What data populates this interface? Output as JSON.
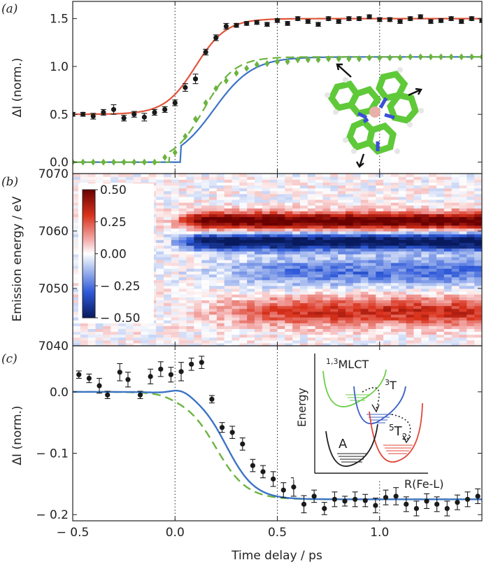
{
  "chart_data": [
    {
      "panel": "(a)",
      "type": "line",
      "ylabel": "ΔI (norm.)",
      "xlim": [
        -0.5,
        1.5
      ],
      "ylim": [
        -0.12,
        1.68
      ],
      "yticks": [
        0.0,
        0.5,
        1.0,
        1.5
      ],
      "yticklabels": [
        "0.0",
        "0.5",
        "1.0",
        "1.5"
      ],
      "vlines": [
        0.0,
        0.5,
        1.0
      ],
      "series": [
        {
          "name": "data-black",
          "style": "points-errorbars",
          "color": "#1a1a1a",
          "x": [
            -0.5,
            -0.45,
            -0.4,
            -0.35,
            -0.3,
            -0.25,
            -0.2,
            -0.15,
            -0.1,
            -0.05,
            0.0,
            0.05,
            0.1,
            0.15,
            0.2,
            0.25,
            0.3,
            0.35,
            0.4,
            0.45,
            0.5,
            0.55,
            0.6,
            0.65,
            0.7,
            0.75,
            0.8,
            0.85,
            0.9,
            0.95,
            1.0,
            1.05,
            1.1,
            1.15,
            1.2,
            1.25,
            1.3,
            1.35,
            1.4,
            1.45,
            1.5
          ],
          "y": [
            0.5,
            0.5,
            0.48,
            0.52,
            0.55,
            0.46,
            0.5,
            0.47,
            0.52,
            0.55,
            0.62,
            0.78,
            0.87,
            1.15,
            1.3,
            1.42,
            1.43,
            1.45,
            1.46,
            1.44,
            1.48,
            1.45,
            1.5,
            1.47,
            1.44,
            1.5,
            1.47,
            1.5,
            1.5,
            1.52,
            1.49,
            1.49,
            1.47,
            1.5,
            1.52,
            1.47,
            1.48,
            1.5,
            1.47,
            1.5,
            1.48
          ],
          "err": [
            0.02,
            0.02,
            0.03,
            0.03,
            0.05,
            0.03,
            0.03,
            0.04,
            0.03,
            0.03,
            0.03,
            0.04,
            0.05,
            0.03,
            0.03,
            0.03,
            0.02,
            0.02,
            0.02,
            0.02,
            0.02,
            0.02,
            0.02,
            0.02,
            0.02,
            0.02,
            0.02,
            0.02,
            0.02,
            0.02,
            0.02,
            0.02,
            0.02,
            0.02,
            0.02,
            0.02,
            0.02,
            0.02,
            0.02,
            0.02,
            0.02
          ]
        },
        {
          "name": "data-green",
          "style": "diamonds",
          "color": "#6cb33f",
          "x": [
            -0.5,
            -0.45,
            -0.4,
            -0.35,
            -0.3,
            -0.25,
            -0.2,
            -0.15,
            -0.1,
            -0.05,
            0.0,
            0.05,
            0.1,
            0.15,
            0.2,
            0.25,
            0.3,
            0.35,
            0.4,
            0.45,
            0.5,
            0.55,
            0.6,
            0.65,
            0.7,
            0.75,
            0.8,
            0.85,
            0.9,
            0.95,
            1.0,
            1.05,
            1.1,
            1.15,
            1.2,
            1.25,
            1.3,
            1.35,
            1.4,
            1.45,
            1.5
          ],
          "y": [
            0.0,
            0.0,
            0.0,
            0.0,
            0.0,
            0.0,
            0.0,
            0.0,
            0.0,
            0.05,
            0.1,
            0.27,
            0.45,
            0.62,
            0.77,
            0.85,
            0.93,
            0.98,
            1.02,
            1.03,
            1.05,
            1.05,
            1.07,
            1.07,
            1.07,
            1.08,
            1.08,
            1.08,
            1.08,
            1.09,
            1.09,
            1.09,
            1.09,
            1.1,
            1.1,
            1.1,
            1.1,
            1.1,
            1.1,
            1.1,
            1.1
          ]
        },
        {
          "name": "fit-red",
          "style": "line",
          "color": "#e0553a",
          "baseline": 0.5,
          "amplitude": 1.0,
          "t0": 0.1,
          "width": 0.075
        },
        {
          "name": "fit-blue",
          "style": "line",
          "color": "#3b74c4",
          "baseline": 0.0,
          "amplitude": 1.1,
          "t0": 0.19,
          "width": 0.095,
          "start": 0.03
        },
        {
          "name": "fit-green-dashed",
          "style": "dashed",
          "color": "#6cb33f",
          "baseline": 0.0,
          "amplitude": 1.1,
          "t0": 0.14,
          "width": 0.075,
          "start": -0.03
        }
      ]
    },
    {
      "panel": "(b)",
      "type": "heatmap",
      "ylabel": "Emission energy / eV",
      "xlim": [
        -0.5,
        1.5
      ],
      "ylim": [
        7040,
        7070
      ],
      "yticks": [
        7040,
        7050,
        7060,
        7070
      ],
      "yticklabels": [
        "7040",
        "7050",
        "7060",
        "7070"
      ],
      "colorbar": {
        "min": -0.5,
        "max": 0.5,
        "ticks": [
          0.5,
          0.25,
          0.0,
          -0.25,
          -0.5
        ],
        "ticklabels": [
          "0.50",
          "0.25",
          "0.00",
          "− 0.25",
          "− 0.50"
        ]
      },
      "features": [
        {
          "energy": 7061.8,
          "sign": 1,
          "amplitude": 0.55,
          "width": 1.5
        },
        {
          "energy": 7058.2,
          "sign": -1,
          "amplitude": 0.55,
          "width": 1.5
        },
        {
          "energy": 7053,
          "sign": -1,
          "amplitude": 0.25,
          "width": 2.5
        },
        {
          "energy": 7046,
          "sign": 1,
          "amplitude": 0.32,
          "width": 2.5
        }
      ]
    },
    {
      "panel": "(c)",
      "type": "line",
      "ylabel": "ΔI (norm.)",
      "xlabel": "Time delay / ps",
      "xlim": [
        -0.5,
        1.5
      ],
      "ylim": [
        -0.21,
        0.075
      ],
      "yticks": [
        0.0,
        -0.1,
        -0.2
      ],
      "yticklabels": [
        "0.0",
        "− 0.1",
        "− 0.2"
      ],
      "xticks": [
        -0.5,
        0.0,
        0.5,
        1.0
      ],
      "xticklabels": [
        "− 0.5",
        "0.0",
        "0.5",
        "1.0"
      ],
      "vlines": [
        0.0,
        0.5,
        1.0
      ],
      "series": [
        {
          "name": "data-black",
          "style": "points-errorbars",
          "color": "#1a1a1a",
          "x": [
            -0.47,
            -0.42,
            -0.37,
            -0.33,
            -0.27,
            -0.23,
            -0.17,
            -0.12,
            -0.07,
            -0.02,
            0.03,
            0.08,
            0.13,
            0.18,
            0.23,
            0.28,
            0.33,
            0.38,
            0.43,
            0.48,
            0.53,
            0.58,
            0.63,
            0.68,
            0.73,
            0.78,
            0.83,
            0.88,
            0.93,
            0.98,
            1.03,
            1.08,
            1.13,
            1.18,
            1.23,
            1.28,
            1.33,
            1.38,
            1.43,
            1.48
          ],
          "y": [
            0.028,
            0.022,
            0.01,
            -0.005,
            0.032,
            0.02,
            -0.005,
            0.025,
            0.037,
            0.028,
            0.033,
            0.045,
            0.048,
            -0.012,
            -0.058,
            -0.066,
            -0.085,
            -0.12,
            -0.13,
            -0.142,
            -0.16,
            -0.155,
            -0.183,
            -0.17,
            -0.19,
            -0.175,
            -0.178,
            -0.175,
            -0.177,
            -0.185,
            -0.172,
            -0.17,
            -0.183,
            -0.19,
            -0.178,
            -0.183,
            -0.19,
            -0.18,
            -0.175,
            -0.17
          ],
          "err": [
            0.006,
            0.007,
            0.012,
            0.006,
            0.014,
            0.012,
            0.006,
            0.012,
            0.012,
            0.012,
            0.015,
            0.01,
            0.01,
            0.006,
            0.008,
            0.01,
            0.01,
            0.01,
            0.01,
            0.012,
            0.012,
            0.015,
            0.014,
            0.01,
            0.01,
            0.012,
            0.008,
            0.012,
            0.01,
            0.012,
            0.012,
            0.014,
            0.012,
            0.012,
            0.012,
            0.012,
            0.012,
            0.012,
            0.012,
            0.012
          ]
        },
        {
          "name": "fit-blue",
          "style": "line",
          "color": "#3b74c4"
        },
        {
          "name": "fit-green-dashed",
          "style": "dashed",
          "color": "#6cb33f"
        }
      ],
      "inset": {
        "ylabel": "Energy",
        "xlabel": "R(Fe-L)",
        "states": [
          {
            "label_main": "MLCT",
            "label_sup": "1,3",
            "color": "#6ccf4a"
          },
          {
            "label_main": "T",
            "label_sup": "3",
            "label_sub": "",
            "color": "#3b5fc4"
          },
          {
            "label_main": "T",
            "label_sup": "5",
            "label_sub": "2",
            "color": "#e0463a"
          },
          {
            "label_main": "A",
            "label_sup": "",
            "color": "#1f1f1f"
          }
        ]
      }
    }
  ]
}
